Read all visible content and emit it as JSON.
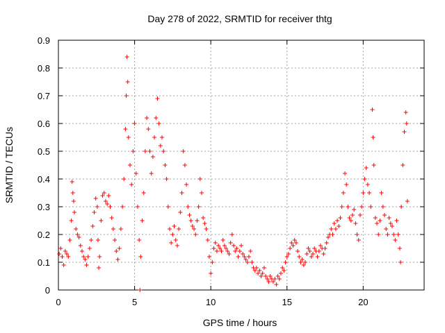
{
  "chart_data": {
    "type": "scatter",
    "title": "Day 278 of 2022, SRMTID for receiver thtg",
    "xlabel": "GPS time / hours",
    "ylabel": "SRMTID / TECUs",
    "xlim": [
      0,
      24
    ],
    "ylim": [
      0,
      0.9
    ],
    "xticks": [
      0,
      5,
      10,
      15,
      20
    ],
    "yticks": [
      0,
      0.1,
      0.2,
      0.3,
      0.4,
      0.5,
      0.6,
      0.7,
      0.8,
      0.9
    ],
    "xtick_labels": [
      "0",
      "5",
      "10",
      "15",
      "20"
    ],
    "ytick_labels": [
      "0",
      "0.1",
      "0.2",
      "0.3",
      "0.4",
      "0.5",
      "0.6",
      "0.7",
      "0.8",
      "0.9"
    ],
    "grid": true,
    "marker": "+",
    "marker_color": "#ff0000",
    "series": [
      {
        "name": "SRMTID",
        "points": [
          [
            0.05,
            0.13
          ],
          [
            0.15,
            0.15
          ],
          [
            0.25,
            0.12
          ],
          [
            0.35,
            0.09
          ],
          [
            0.45,
            0.14
          ],
          [
            0.55,
            0.13
          ],
          [
            0.65,
            0.12
          ],
          [
            0.75,
            0.18
          ],
          [
            0.85,
            0.25
          ],
          [
            0.9,
            0.39
          ],
          [
            0.95,
            0.35
          ],
          [
            1.0,
            0.32
          ],
          [
            1.05,
            0.28
          ],
          [
            1.15,
            0.22
          ],
          [
            1.25,
            0.2
          ],
          [
            1.35,
            0.19
          ],
          [
            1.45,
            0.16
          ],
          [
            1.55,
            0.14
          ],
          [
            1.65,
            0.12
          ],
          [
            1.75,
            0.11
          ],
          [
            1.85,
            0.09
          ],
          [
            1.95,
            0.12
          ],
          [
            2.05,
            0.15
          ],
          [
            2.15,
            0.18
          ],
          [
            2.25,
            0.23
          ],
          [
            2.35,
            0.28
          ],
          [
            2.45,
            0.33
          ],
          [
            2.55,
            0.3
          ],
          [
            2.6,
            0.18
          ],
          [
            2.65,
            0.08
          ],
          [
            2.7,
            0.12
          ],
          [
            2.8,
            0.25
          ],
          [
            2.9,
            0.34
          ],
          [
            3.0,
            0.35
          ],
          [
            3.1,
            0.32
          ],
          [
            3.2,
            0.31
          ],
          [
            3.3,
            0.34
          ],
          [
            3.4,
            0.3
          ],
          [
            3.5,
            0.26
          ],
          [
            3.6,
            0.22
          ],
          [
            3.7,
            0.18
          ],
          [
            3.8,
            0.14
          ],
          [
            3.9,
            0.11
          ],
          [
            4.0,
            0.15
          ],
          [
            4.1,
            0.22
          ],
          [
            4.2,
            0.3
          ],
          [
            4.3,
            0.4
          ],
          [
            4.4,
            0.58
          ],
          [
            4.45,
            0.7
          ],
          [
            4.5,
            0.84
          ],
          [
            4.55,
            0.75
          ],
          [
            4.6,
            0.55
          ],
          [
            4.7,
            0.45
          ],
          [
            4.8,
            0.38
          ],
          [
            4.9,
            0.5
          ],
          [
            5.0,
            0.6
          ],
          [
            5.1,
            0.42
          ],
          [
            5.2,
            0.3
          ],
          [
            5.3,
            0.18
          ],
          [
            5.35,
            0.0
          ],
          [
            5.4,
            0.12
          ],
          [
            5.5,
            0.25
          ],
          [
            5.6,
            0.35
          ],
          [
            5.7,
            0.5
          ],
          [
            5.8,
            0.62
          ],
          [
            5.9,
            0.58
          ],
          [
            6.0,
            0.5
          ],
          [
            6.1,
            0.42
          ],
          [
            6.2,
            0.48
          ],
          [
            6.3,
            0.55
          ],
          [
            6.4,
            0.62
          ],
          [
            6.5,
            0.69
          ],
          [
            6.6,
            0.6
          ],
          [
            6.7,
            0.52
          ],
          [
            6.8,
            0.55
          ],
          [
            6.9,
            0.5
          ],
          [
            7.0,
            0.45
          ],
          [
            7.1,
            0.4
          ],
          [
            7.2,
            0.3
          ],
          [
            7.3,
            0.22
          ],
          [
            7.4,
            0.17
          ],
          [
            7.5,
            0.2
          ],
          [
            7.6,
            0.23
          ],
          [
            7.7,
            0.18
          ],
          [
            7.8,
            0.16
          ],
          [
            7.9,
            0.22
          ],
          [
            8.0,
            0.28
          ],
          [
            8.1,
            0.35
          ],
          [
            8.2,
            0.5
          ],
          [
            8.3,
            0.45
          ],
          [
            8.4,
            0.38
          ],
          [
            8.5,
            0.3
          ],
          [
            8.6,
            0.27
          ],
          [
            8.7,
            0.25
          ],
          [
            8.8,
            0.23
          ],
          [
            8.9,
            0.22
          ],
          [
            9.0,
            0.2
          ],
          [
            9.1,
            0.25
          ],
          [
            9.2,
            0.3
          ],
          [
            9.3,
            0.4
          ],
          [
            9.4,
            0.35
          ],
          [
            9.5,
            0.26
          ],
          [
            9.6,
            0.24
          ],
          [
            9.7,
            0.22
          ],
          [
            9.8,
            0.18
          ],
          [
            9.9,
            0.12
          ],
          [
            10.0,
            0.06
          ],
          [
            10.1,
            0.1
          ],
          [
            10.2,
            0.15
          ],
          [
            10.3,
            0.17
          ],
          [
            10.4,
            0.14
          ],
          [
            10.5,
            0.16
          ],
          [
            10.6,
            0.15
          ],
          [
            10.7,
            0.14
          ],
          [
            10.8,
            0.18
          ],
          [
            10.9,
            0.16
          ],
          [
            11.0,
            0.15
          ],
          [
            11.1,
            0.14
          ],
          [
            11.2,
            0.13
          ],
          [
            11.3,
            0.17
          ],
          [
            11.4,
            0.2
          ],
          [
            11.5,
            0.16
          ],
          [
            11.6,
            0.14
          ],
          [
            11.7,
            0.15
          ],
          [
            11.8,
            0.12
          ],
          [
            11.9,
            0.14
          ],
          [
            12.0,
            0.16
          ],
          [
            12.1,
            0.13
          ],
          [
            12.2,
            0.12
          ],
          [
            12.3,
            0.11
          ],
          [
            12.4,
            0.1
          ],
          [
            12.5,
            0.12
          ],
          [
            12.6,
            0.14
          ],
          [
            12.7,
            0.1
          ],
          [
            12.8,
            0.08
          ],
          [
            12.9,
            0.07
          ],
          [
            13.0,
            0.08
          ],
          [
            13.1,
            0.06
          ],
          [
            13.2,
            0.07
          ],
          [
            13.3,
            0.05
          ],
          [
            13.4,
            0.06
          ],
          [
            13.5,
            0.08
          ],
          [
            13.6,
            0.05
          ],
          [
            13.7,
            0.04
          ],
          [
            13.8,
            0.03
          ],
          [
            13.9,
            0.05
          ],
          [
            14.0,
            0.04
          ],
          [
            14.1,
            0.03
          ],
          [
            14.2,
            0.04
          ],
          [
            14.3,
            0.02
          ],
          [
            14.4,
            0.05
          ],
          [
            14.5,
            0.04
          ],
          [
            14.6,
            0.06
          ],
          [
            14.7,
            0.08
          ],
          [
            14.8,
            0.07
          ],
          [
            14.9,
            0.1
          ],
          [
            15.0,
            0.12
          ],
          [
            15.1,
            0.13
          ],
          [
            15.2,
            0.15
          ],
          [
            15.3,
            0.17
          ],
          [
            15.4,
            0.16
          ],
          [
            15.5,
            0.18
          ],
          [
            15.6,
            0.17
          ],
          [
            15.7,
            0.14
          ],
          [
            15.8,
            0.12
          ],
          [
            15.9,
            0.1
          ],
          [
            16.0,
            0.11
          ],
          [
            16.1,
            0.09
          ],
          [
            16.2,
            0.1
          ],
          [
            16.3,
            0.13
          ],
          [
            16.4,
            0.15
          ],
          [
            16.5,
            0.14
          ],
          [
            16.6,
            0.12
          ],
          [
            16.7,
            0.13
          ],
          [
            16.8,
            0.15
          ],
          [
            16.9,
            0.14
          ],
          [
            17.0,
            0.12
          ],
          [
            17.1,
            0.14
          ],
          [
            17.2,
            0.16
          ],
          [
            17.3,
            0.15
          ],
          [
            17.4,
            0.13
          ],
          [
            17.5,
            0.15
          ],
          [
            17.6,
            0.17
          ],
          [
            17.7,
            0.19
          ],
          [
            17.8,
            0.2
          ],
          [
            17.9,
            0.22
          ],
          [
            18.0,
            0.2
          ],
          [
            18.1,
            0.24
          ],
          [
            18.2,
            0.22
          ],
          [
            18.3,
            0.25
          ],
          [
            18.4,
            0.23
          ],
          [
            18.5,
            0.26
          ],
          [
            18.6,
            0.3
          ],
          [
            18.7,
            0.35
          ],
          [
            18.8,
            0.42
          ],
          [
            18.9,
            0.38
          ],
          [
            19.0,
            0.3
          ],
          [
            19.1,
            0.26
          ],
          [
            19.2,
            0.25
          ],
          [
            19.3,
            0.27
          ],
          [
            19.4,
            0.29
          ],
          [
            19.5,
            0.24
          ],
          [
            19.6,
            0.2
          ],
          [
            19.7,
            0.18
          ],
          [
            19.8,
            0.27
          ],
          [
            19.9,
            0.3
          ],
          [
            20.0,
            0.35
          ],
          [
            20.1,
            0.4
          ],
          [
            20.2,
            0.44
          ],
          [
            20.3,
            0.38
          ],
          [
            20.4,
            0.35
          ],
          [
            20.5,
            0.3
          ],
          [
            20.6,
            0.65
          ],
          [
            20.65,
            0.55
          ],
          [
            20.7,
            0.45
          ],
          [
            20.8,
            0.26
          ],
          [
            20.9,
            0.24
          ],
          [
            21.0,
            0.2
          ],
          [
            21.1,
            0.25
          ],
          [
            21.2,
            0.35
          ],
          [
            21.3,
            0.3
          ],
          [
            21.4,
            0.27
          ],
          [
            21.5,
            0.22
          ],
          [
            21.6,
            0.2
          ],
          [
            21.7,
            0.26
          ],
          [
            21.8,
            0.24
          ],
          [
            21.9,
            0.23
          ],
          [
            22.0,
            0.2
          ],
          [
            22.1,
            0.18
          ],
          [
            22.2,
            0.25
          ],
          [
            22.3,
            0.2
          ],
          [
            22.4,
            0.15
          ],
          [
            22.45,
            0.1
          ],
          [
            22.5,
            0.3
          ],
          [
            22.6,
            0.45
          ],
          [
            22.7,
            0.57
          ],
          [
            22.8,
            0.64
          ],
          [
            22.85,
            0.6
          ],
          [
            22.9,
            0.32
          ]
        ]
      }
    ]
  }
}
